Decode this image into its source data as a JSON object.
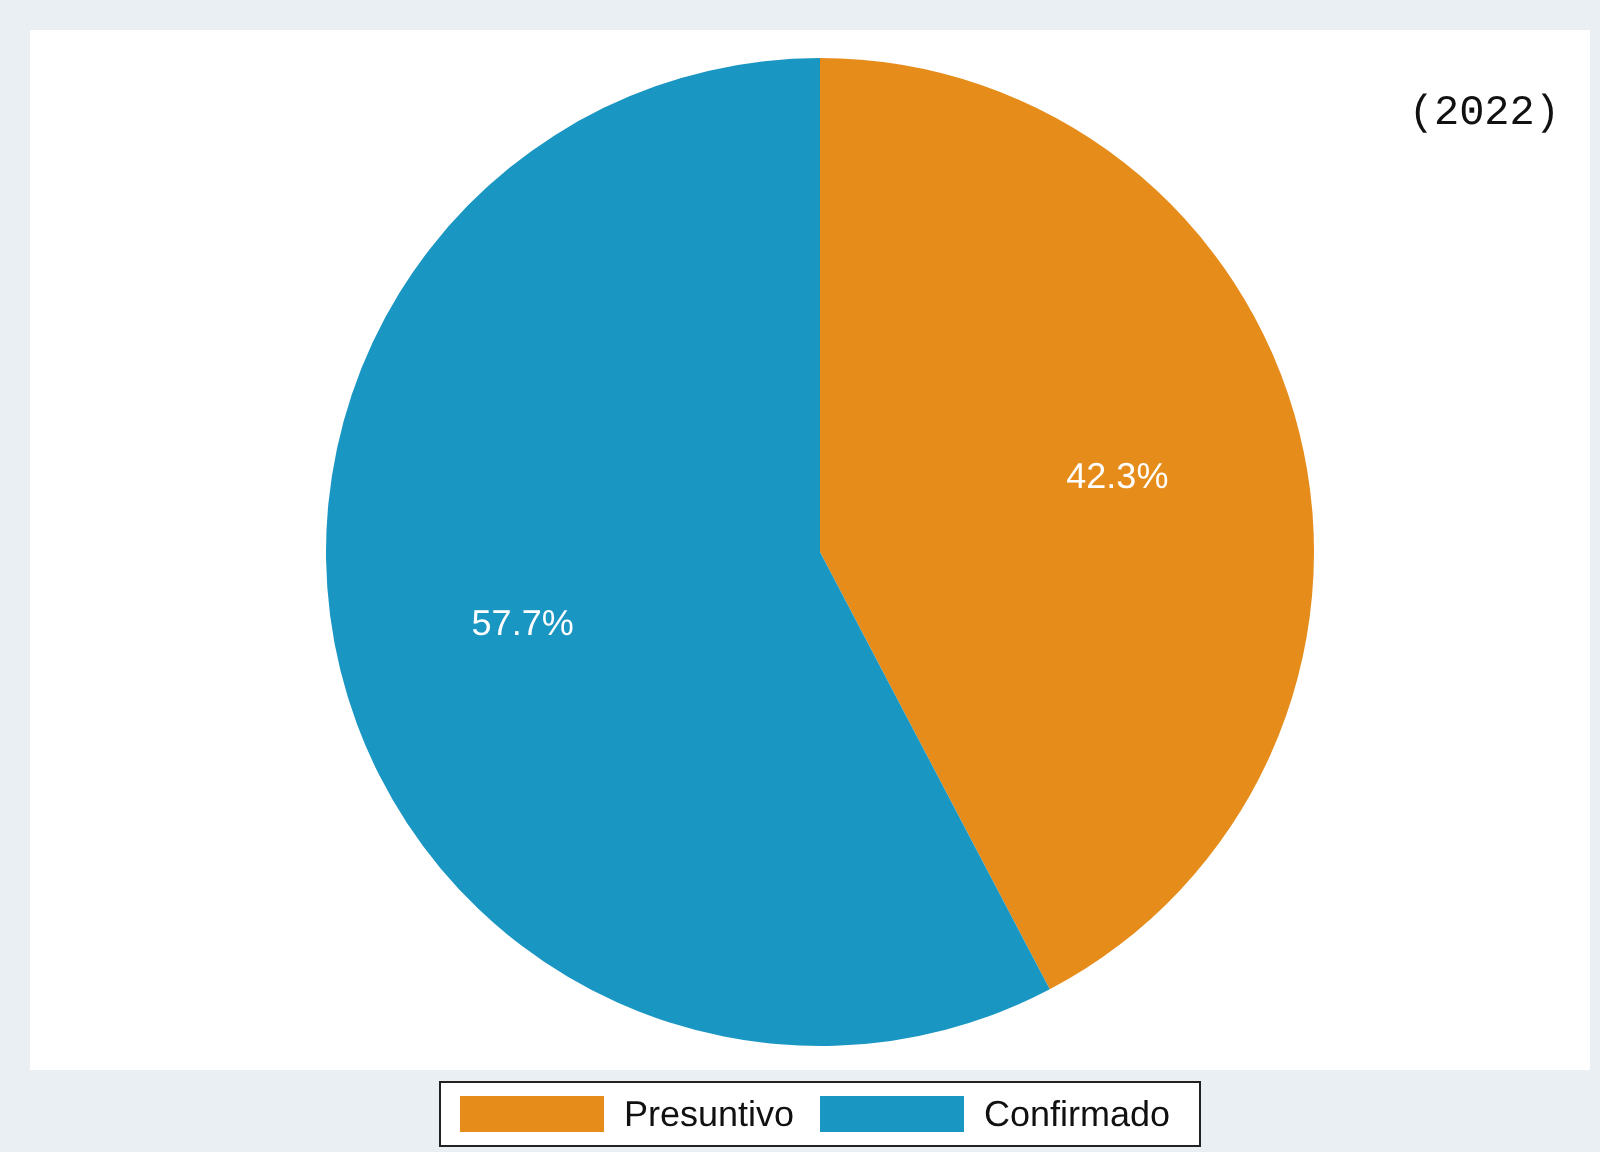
{
  "chart_data": {
    "type": "pie",
    "title": "(2022)",
    "categories": [
      "Presuntivo",
      "Confirmado"
    ],
    "values": [
      42.3,
      57.7
    ],
    "colors": [
      "#e68c1a",
      "#1a96c3"
    ],
    "value_labels": [
      "42.3%",
      "57.7%"
    ],
    "legend": "bottom"
  }
}
